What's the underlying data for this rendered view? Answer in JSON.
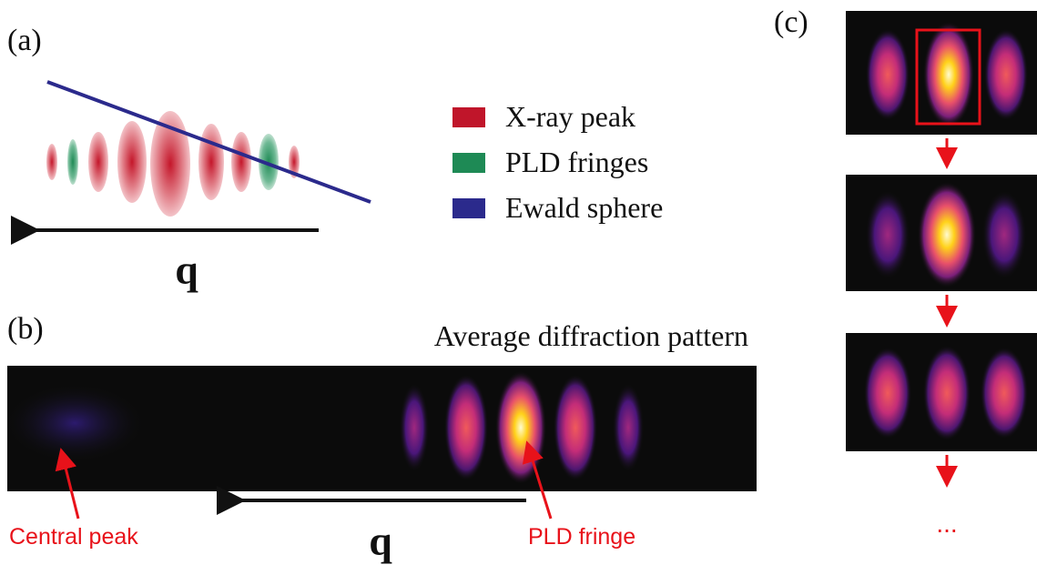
{
  "panel_labels": [
    "(a)",
    "(b)",
    "(c)"
  ],
  "legend": [
    "X-ray peak",
    "PLD fringes",
    "Ewald sphere"
  ],
  "axis_label": "q",
  "b_title": "Average diffraction pattern",
  "annotations": [
    "Central peak",
    "PLD fringe"
  ],
  "ellipsis": "..."
}
